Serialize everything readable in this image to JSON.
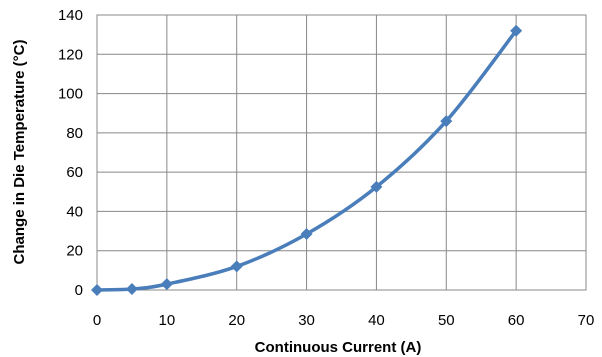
{
  "chart_data": {
    "type": "line",
    "title": "",
    "xlabel": "Continuous Current (A)",
    "ylabel": "Change in Die Temperature (°C)",
    "xlim": [
      0,
      70
    ],
    "ylim": [
      0,
      140
    ],
    "xticks": [
      "0",
      "10",
      "20",
      "30",
      "40",
      "50",
      "60",
      "70"
    ],
    "yticks": [
      "0",
      "20",
      "40",
      "60",
      "80",
      "100",
      "120",
      "140"
    ],
    "grid": true,
    "legend": "none",
    "series": [
      {
        "color": "#4a7ebb",
        "marker": "diamond",
        "smooth": true,
        "points": [
          {
            "x": 0,
            "y": 0
          },
          {
            "x": 5,
            "y": 0.5
          },
          {
            "x": 10,
            "y": 3
          },
          {
            "x": 20,
            "y": 12
          },
          {
            "x": 30,
            "y": 28.5
          },
          {
            "x": 40,
            "y": 52.5
          },
          {
            "x": 50,
            "y": 86
          },
          {
            "x": 60,
            "y": 132
          }
        ]
      }
    ]
  }
}
